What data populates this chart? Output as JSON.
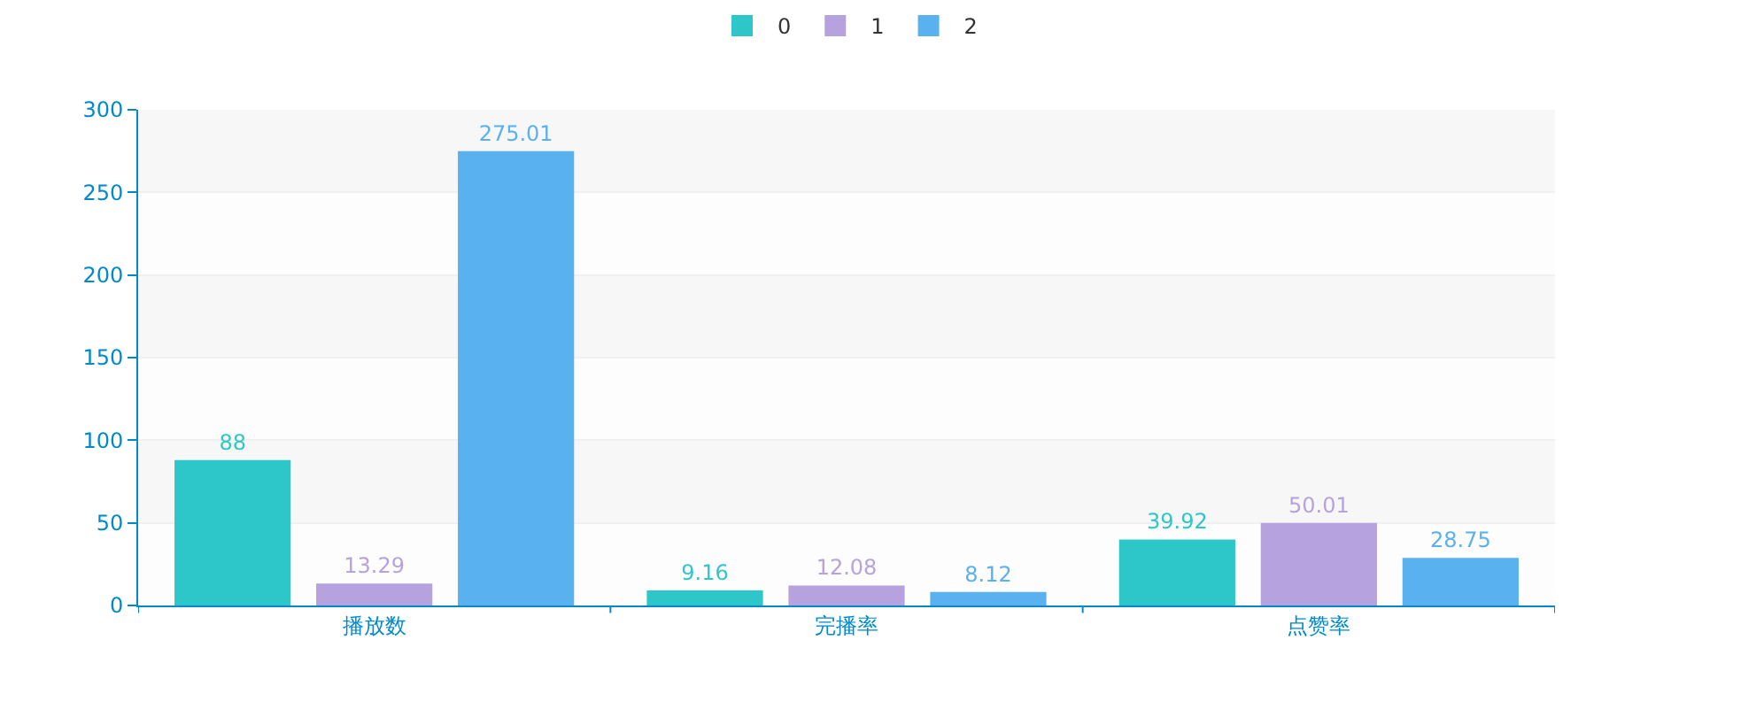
{
  "chart_data": {
    "type": "bar",
    "categories": [
      "播放数",
      "完播率",
      "点赞率"
    ],
    "series": [
      {
        "name": "0",
        "color": "#2ec7c9",
        "values": [
          88,
          9.16,
          39.92
        ]
      },
      {
        "name": "1",
        "color": "#b6a2de",
        "values": [
          13.29,
          12.08,
          50.01
        ]
      },
      {
        "name": "2",
        "color": "#5ab1ef",
        "values": [
          275.01,
          8.12,
          28.75
        ]
      }
    ],
    "ylim": [
      0,
      300
    ],
    "yticks": [
      0,
      50,
      100,
      150,
      200,
      250,
      300
    ],
    "data_labels": true,
    "grid": true,
    "legend": "top"
  }
}
